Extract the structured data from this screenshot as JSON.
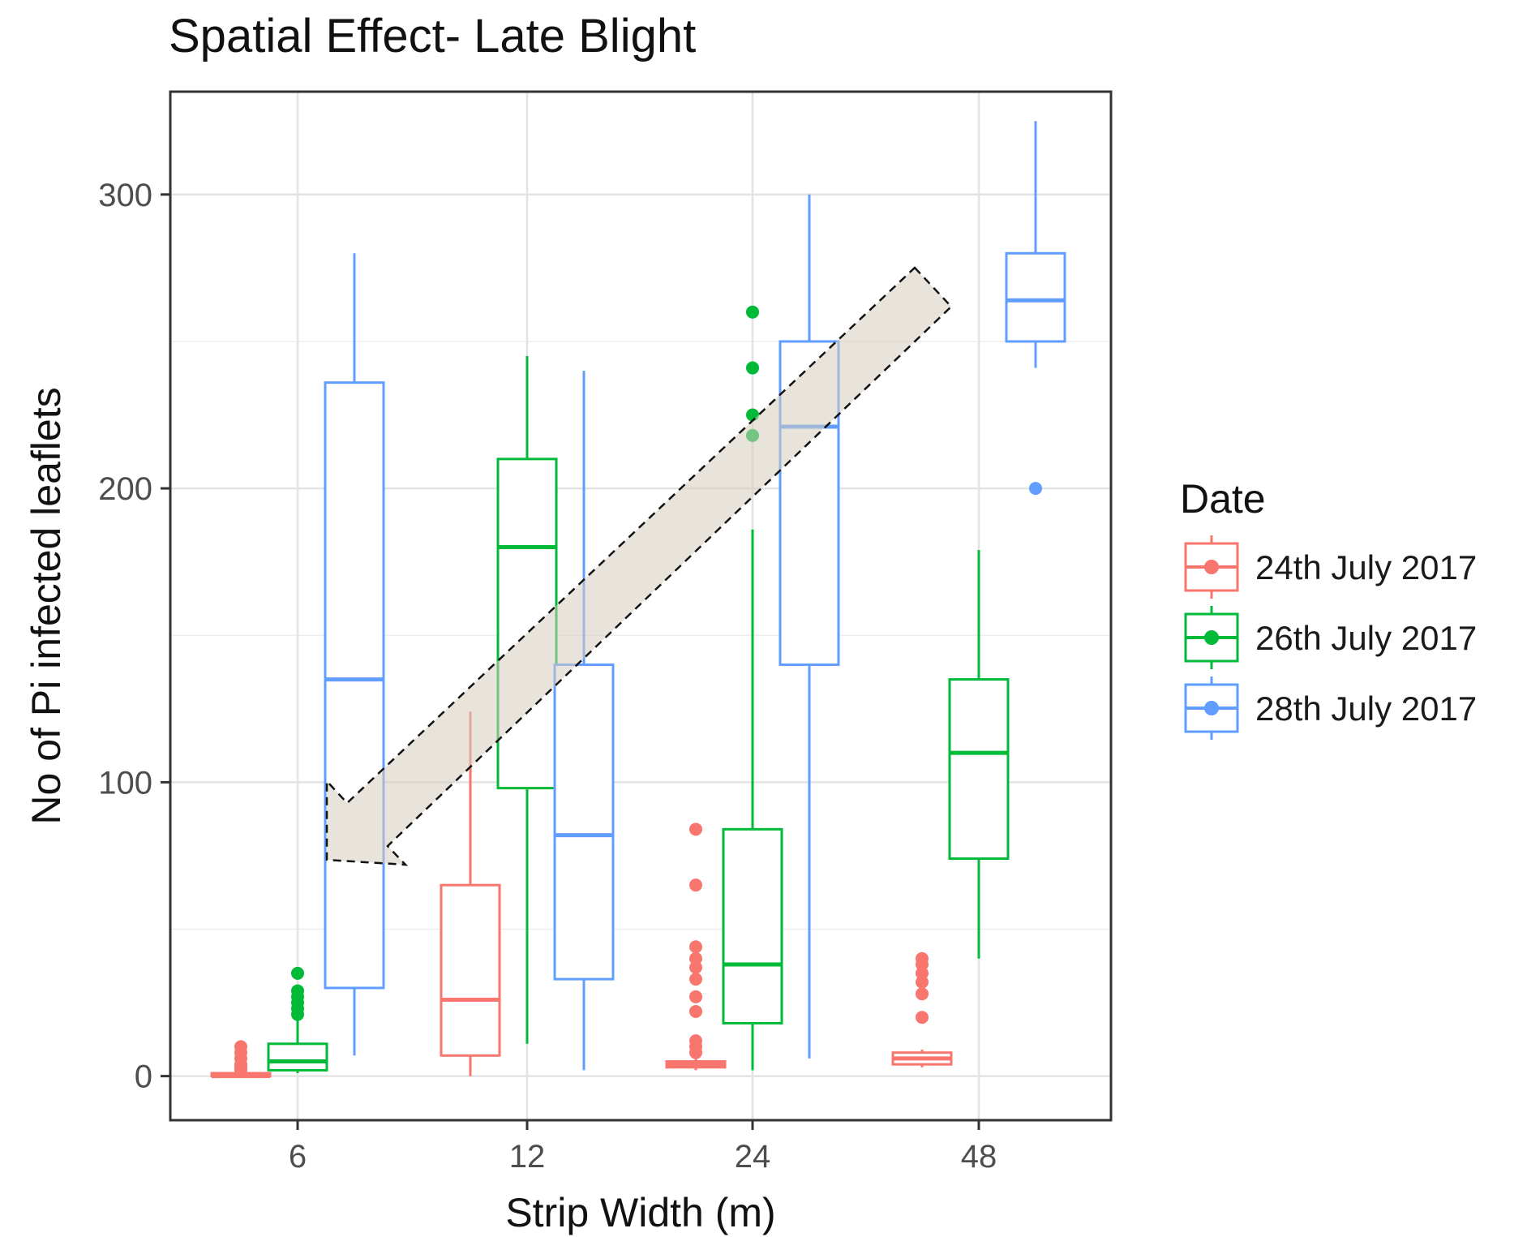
{
  "chart_data": {
    "type": "boxplot",
    "title": "Spatial Effect- Late Blight",
    "xlabel": "Strip Width (m)",
    "ylabel": "No of Pi infected leaflets",
    "categories": [
      "6",
      "12",
      "24",
      "48"
    ],
    "ylim": [
      -15,
      335
    ],
    "yticks": [
      0,
      100,
      200,
      300
    ],
    "grid": true,
    "legend": {
      "title": "Date",
      "position": "right"
    },
    "series": [
      {
        "name": "24th July 2017",
        "color": "#F8766D",
        "boxes": [
          {
            "category": "6",
            "min": 0,
            "q1": 0,
            "median": 0,
            "q3": 1,
            "max": 1,
            "outliers": [
              2,
              3,
              4,
              6,
              8,
              10
            ]
          },
          {
            "category": "12",
            "min": 0,
            "q1": 7,
            "median": 26,
            "q3": 65,
            "max": 124,
            "outliers": []
          },
          {
            "category": "24",
            "min": 2,
            "q1": 3,
            "median": 4,
            "q3": 5,
            "max": 6,
            "outliers": [
              8,
              10,
              12,
              22,
              27,
              33,
              37,
              40,
              44,
              65,
              84
            ]
          },
          {
            "category": "48",
            "min": 3,
            "q1": 4,
            "median": 6,
            "q3": 8,
            "max": 9,
            "outliers": [
              20,
              28,
              32,
              35,
              38,
              40
            ]
          }
        ]
      },
      {
        "name": "26th July 2017",
        "color": "#00BA38",
        "boxes": [
          {
            "category": "6",
            "min": 1,
            "q1": 2,
            "median": 5,
            "q3": 11,
            "max": 19,
            "outliers": [
              21,
              23,
              25,
              27,
              29,
              35
            ]
          },
          {
            "category": "12",
            "min": 11,
            "q1": 98,
            "median": 180,
            "q3": 210,
            "max": 245,
            "outliers": []
          },
          {
            "category": "24",
            "min": 2,
            "q1": 18,
            "median": 38,
            "q3": 84,
            "max": 186,
            "outliers": [
              218,
              225,
              241,
              260
            ]
          },
          {
            "category": "48",
            "min": 40,
            "q1": 74,
            "median": 110,
            "q3": 135,
            "max": 179,
            "outliers": []
          }
        ]
      },
      {
        "name": "28th July 2017",
        "color": "#619CFF",
        "boxes": [
          {
            "category": "6",
            "min": 7,
            "q1": 30,
            "median": 135,
            "q3": 236,
            "max": 280,
            "outliers": []
          },
          {
            "category": "12",
            "min": 2,
            "q1": 33,
            "median": 82,
            "q3": 140,
            "max": 240,
            "outliers": []
          },
          {
            "category": "24",
            "min": 6,
            "q1": 140,
            "median": 221,
            "q3": 250,
            "max": 300,
            "outliers": []
          },
          {
            "category": "48",
            "min": 241,
            "q1": 250,
            "median": 264,
            "q3": 280,
            "max": 325,
            "outliers": [
              200
            ]
          }
        ]
      }
    ]
  }
}
